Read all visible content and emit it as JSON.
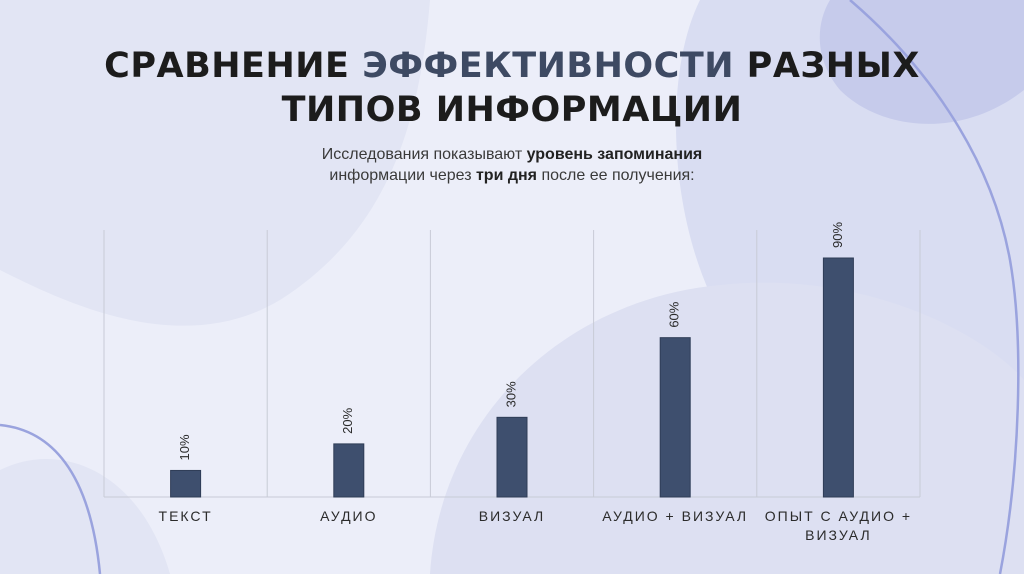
{
  "title": {
    "part1": "СРАВНЕНИЕ ",
    "accent": "ЭФФЕКТИВНОСТИ",
    "part2": " РАЗНЫХ",
    "line2": "ТИПОВ ИНФОРМАЦИИ"
  },
  "subtitle": {
    "p1": "Исследования показывают ",
    "b1": "уровень запоминания",
    "p2": "информации через ",
    "b2": "три дня",
    "p3": " после ее получения:"
  },
  "colors": {
    "bar": "#3e4f6e",
    "grid": "#c8cbd6",
    "accent": "#3e4a63"
  },
  "chart_data": {
    "type": "bar",
    "categories": [
      "ТЕКСТ",
      "АУДИО",
      "ВИЗУАЛ",
      "АУДИО + ВИЗУАЛ",
      "ОПЫТ С АУДИО + ВИЗУАЛ"
    ],
    "values": [
      10,
      20,
      30,
      60,
      90
    ],
    "data_labels": [
      "10%",
      "20%",
      "30%",
      "60%",
      "90%"
    ],
    "ylim": [
      0,
      90
    ],
    "grid": true,
    "title": "",
    "xlabel": "",
    "ylabel": ""
  }
}
